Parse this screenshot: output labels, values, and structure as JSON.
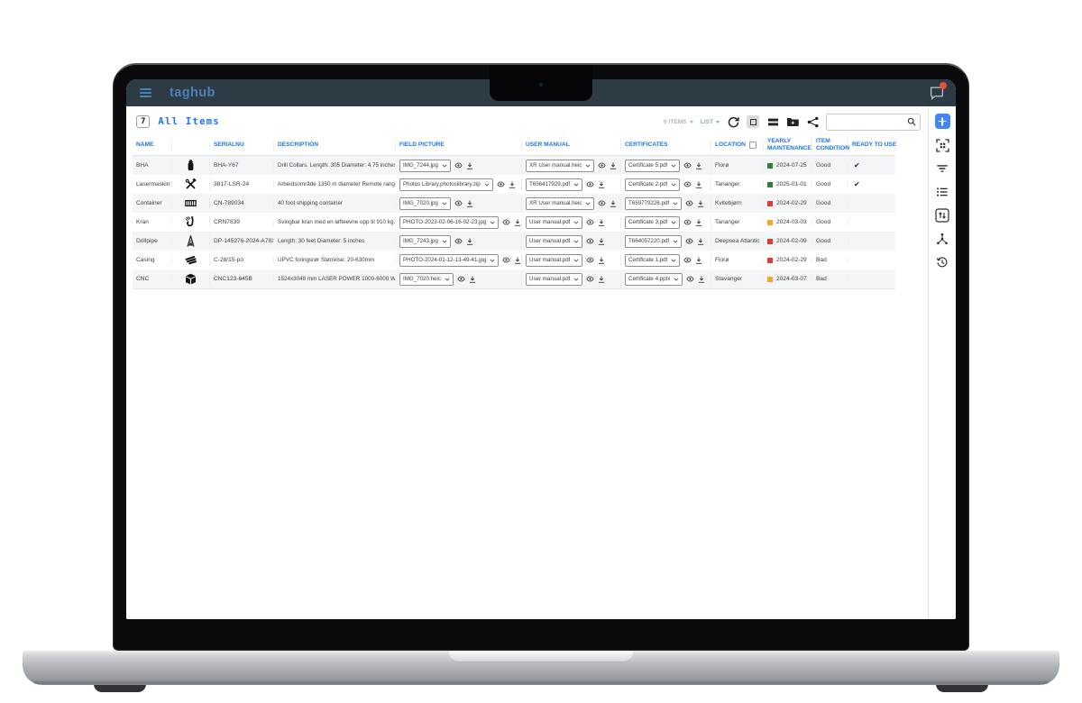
{
  "navbar": {
    "logo": "taghub"
  },
  "page": {
    "count": "7",
    "title": "All Items"
  },
  "toolbar": {
    "items_label": "0 ITEMS",
    "view_label": "LIST",
    "search_value": "",
    "search_placeholder": ""
  },
  "table": {
    "columns": [
      "NAME",
      "",
      "SERIALNU",
      "DESCRIPTION",
      "FIELD PICTURE",
      "USER MANUAL",
      "CERTIFICATES",
      "LOCATION",
      "YEARLY MAINTENANCE",
      "ITEM CONDITION",
      "READY TO USE"
    ],
    "rows": [
      {
        "name": "BHA",
        "icon": "gas-tank",
        "serial": "BHA-Y67",
        "description": "Drill Collars. Length: 305 Diameter: 4.75 inches",
        "field_picture": "IMG_7244.jpg",
        "user_manual": "XR User manual.heic",
        "certificate": "Certificate 5.pdf",
        "location": "Florø",
        "maintenance_date": "2024-07-25",
        "maintenance_status": "green",
        "condition": "Good",
        "ready": true
      },
      {
        "name": "Lasermaskin",
        "icon": "tools",
        "serial": "3817-LSR-24",
        "description": "Arbeidsområde 1350 m diameter Remote range ...",
        "field_picture": "Photos Library.photoslibrary.zip",
        "user_manual": "T656417929.pdf",
        "certificate": "Certificate 2.pdf",
        "location": "Tananger",
        "maintenance_date": "2025-01-01",
        "maintenance_status": "green",
        "condition": "Good",
        "ready": true
      },
      {
        "name": "Container",
        "icon": "container",
        "serial": "CN-789034",
        "description": "40 foot shipping container",
        "field_picture": "IMG_7020.jpg",
        "user_manual": "XR User manual.heic",
        "certificate": "T659779226.pdf",
        "location": "Kvitebjørn",
        "maintenance_date": "2024-02-29",
        "maintenance_status": "red",
        "condition": "Good",
        "ready": false
      },
      {
        "name": "Kran",
        "icon": "hook",
        "serial": "CRN7839",
        "description": "Svingbar kran med en løfteevne opp til 910 kg. Kr...",
        "field_picture": "PHOTO-2023-02-06-16-02-23.jpg",
        "user_manual": "User manual.pdf",
        "certificate": "Certificate 3.pdf",
        "location": "Tananger",
        "maintenance_date": "2024-03-03",
        "maintenance_status": "orange",
        "condition": "Good",
        "ready": false
      },
      {
        "name": "Drillpipe",
        "icon": "derrick",
        "serial": "DP-145276-2024-A78X",
        "description": "Length: 30 feet Diameter: 5 inches",
        "field_picture": "IMG_7243.jpg",
        "user_manual": "User manual.pdf",
        "certificate": "T664057220.pdf",
        "location": "Deepsea Atlantic",
        "maintenance_date": "2024-02-09",
        "maintenance_status": "red",
        "condition": "Good",
        "ready": false
      },
      {
        "name": "Casing",
        "icon": "pipes",
        "serial": "C-28/15-po",
        "description": "UPVC foringsrør Størrelse: 20-630mm",
        "field_picture": "PHOTO-2024-01-12-13-49-41.jpg",
        "user_manual": "User manual.pdf",
        "certificate": "Certificate 1.pdf",
        "location": "Florø",
        "maintenance_date": "2024-02-29",
        "maintenance_status": "red",
        "condition": "Bad",
        "ready": false
      },
      {
        "name": "CNC",
        "icon": "cube",
        "serial": "CNC123-645B",
        "description": "1524x3048 mm LASER POWER 1000-6000 W",
        "field_picture": "IMG_7020.heic",
        "user_manual": "User manual.pdf",
        "certificate": "Certificate 4.pptx",
        "location": "Stavanger",
        "maintenance_date": "2024-03-07",
        "maintenance_status": "orange",
        "condition": "Bad",
        "ready": false
      }
    ]
  },
  "status_colors": {
    "green": "#2e7d32",
    "red": "#e53935",
    "orange": "#f5a623"
  },
  "accent_colors": {
    "header_blue": "#1a73e8",
    "logo_blue": "#4d80b5",
    "add_button_blue": "#4285f4",
    "badge_red": "#e8503a",
    "navbar_bg": "#2d3b44"
  },
  "icons": {
    "navbar": [
      "menu-icon",
      "messages-icon"
    ],
    "toolbar": [
      "refresh-icon",
      "select-frame-icon",
      "rows-density-icon",
      "folder-move-icon",
      "share-icon",
      "search-icon"
    ],
    "rail": [
      "add-item-button",
      "qr-scan-icon",
      "filter-icon",
      "list-view-icon",
      "sort-box-icon",
      "network-icon",
      "history-icon"
    ],
    "row_actions": [
      "preview-icon",
      "download-icon",
      "chevron-down-icon"
    ],
    "item_icons": [
      "gas-tank",
      "tools",
      "container",
      "hook",
      "derrick",
      "pipes",
      "cube"
    ]
  }
}
